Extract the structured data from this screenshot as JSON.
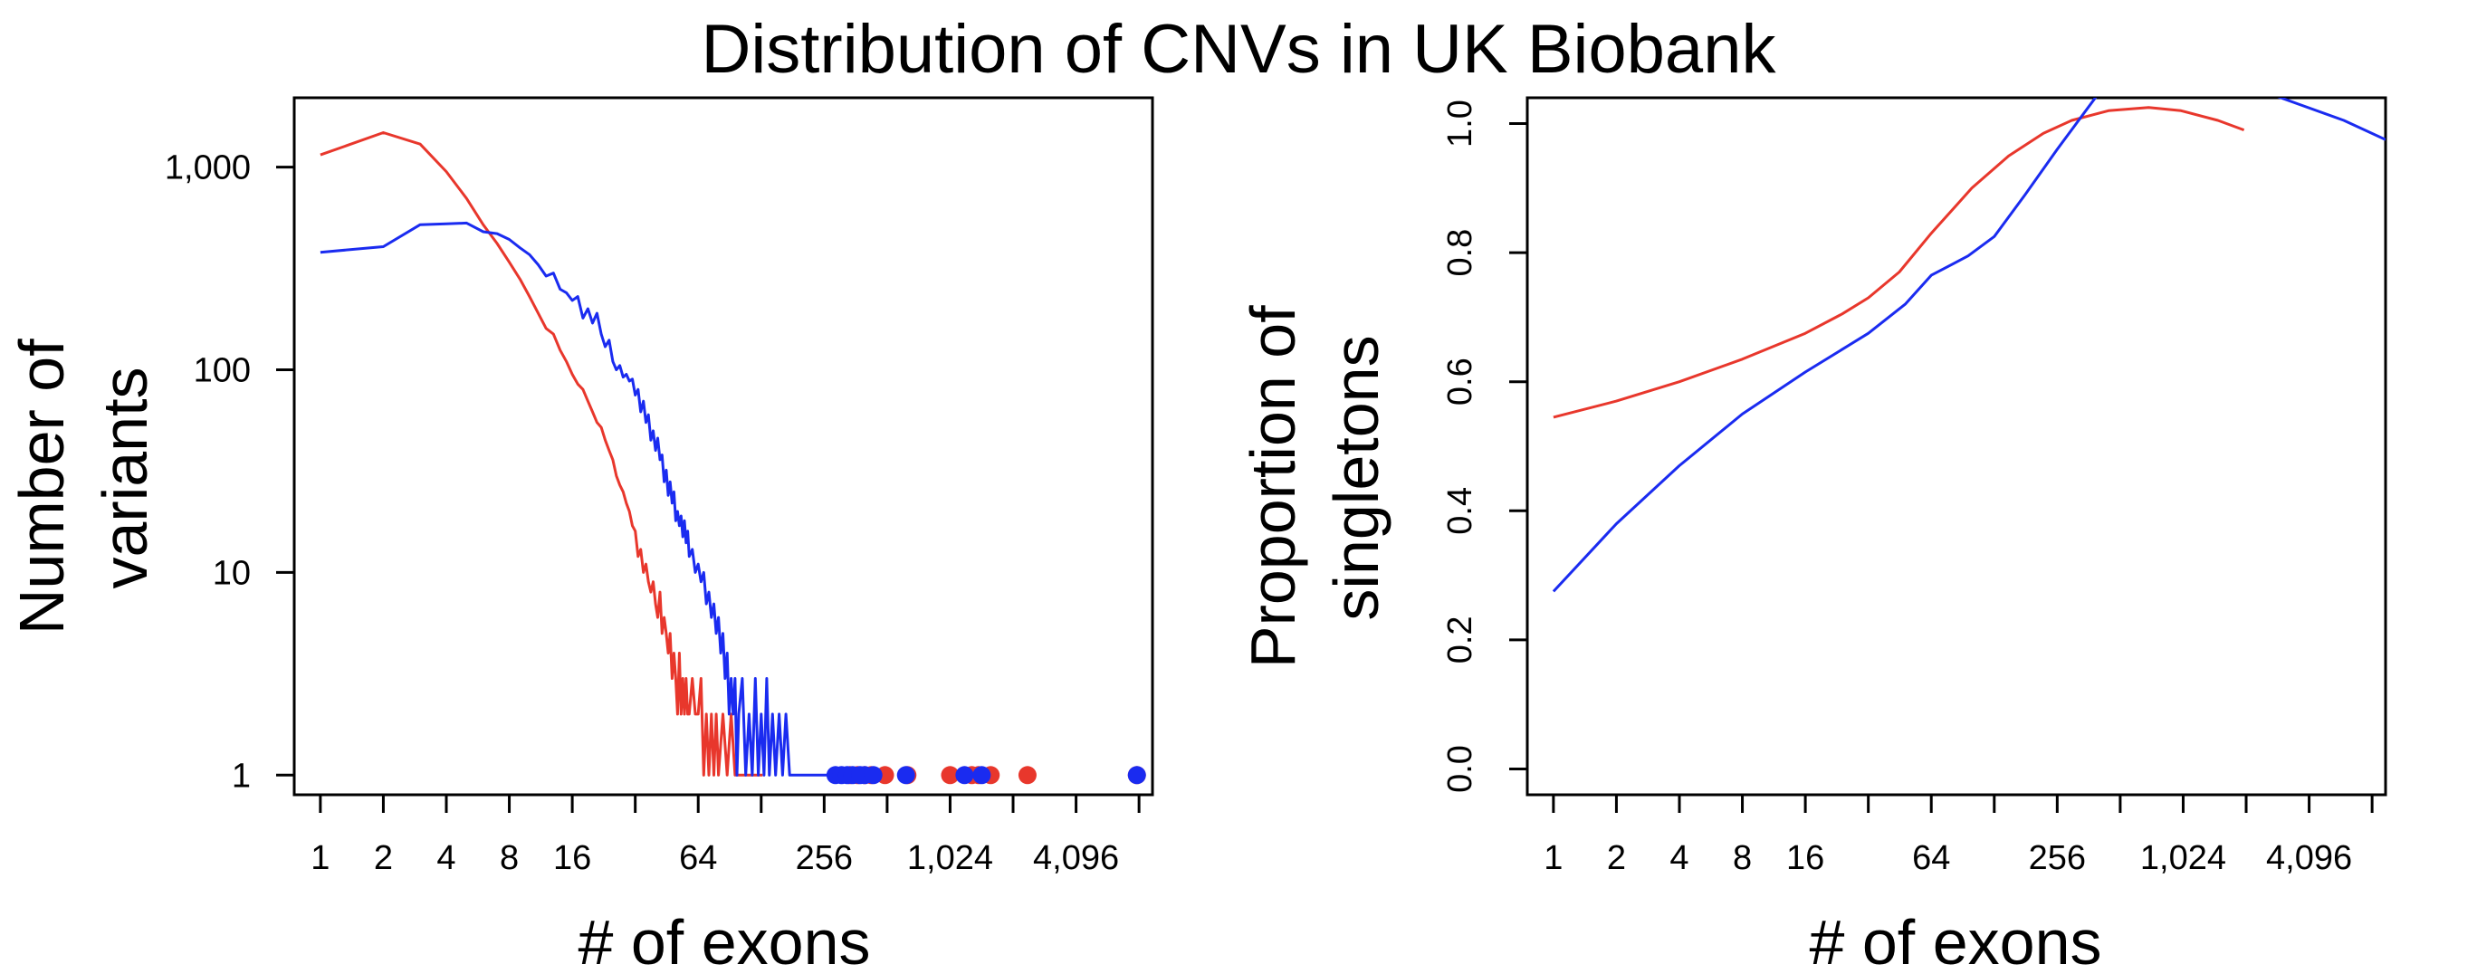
{
  "figure": {
    "title": "Distribution of CNVs in UK Biobank"
  },
  "colors": {
    "red_series": "#e8372c",
    "blue_series": "#1a2bf0",
    "axis": "#000000"
  },
  "chart_data": [
    {
      "type": "line",
      "xlabel": "# of exons",
      "ylabel_lines": [
        "Number of",
        "variants"
      ],
      "x_scale": "log2",
      "y_scale": "log10",
      "xlim": [
        0.75,
        9500
      ],
      "ylim": [
        0.8,
        2200
      ],
      "x_ticks": [
        1,
        2,
        4,
        8,
        16,
        32,
        64,
        128,
        256,
        512,
        1024,
        2048,
        4096,
        8192
      ],
      "x_tick_labels": [
        "1",
        "2",
        "4",
        "8",
        "16",
        "",
        "64",
        "",
        "256",
        "",
        "1,024",
        "",
        "4,096",
        ""
      ],
      "y_ticks": [
        1,
        10,
        100,
        1000
      ],
      "y_tick_labels": [
        "1",
        "10",
        "100",
        "1,000"
      ],
      "grid": false,
      "series": [
        {
          "color": "red_series",
          "line": [
            [
              1,
              1150
            ],
            [
              2,
              1480
            ],
            [
              3,
              1300
            ],
            [
              4,
              950
            ],
            [
              5,
              700
            ],
            [
              6,
              520
            ],
            [
              7,
              420
            ],
            [
              8,
              340
            ],
            [
              9,
              280
            ],
            [
              10,
              230
            ],
            [
              11,
              190
            ],
            [
              12,
              160
            ],
            [
              13,
              150
            ],
            [
              14,
              125
            ],
            [
              15,
              110
            ],
            [
              16,
              95
            ],
            [
              17,
              85
            ],
            [
              18,
              80
            ],
            [
              19,
              70
            ],
            [
              20,
              62
            ],
            [
              21,
              55
            ],
            [
              22,
              52
            ],
            [
              23,
              45
            ],
            [
              24,
              40
            ],
            [
              25,
              36
            ],
            [
              26,
              30
            ],
            [
              27,
              27
            ],
            [
              28,
              25
            ],
            [
              29,
              22
            ],
            [
              30,
              20
            ],
            [
              31,
              17
            ],
            [
              32,
              16
            ],
            [
              33,
              12
            ],
            [
              34,
              13
            ],
            [
              35,
              10
            ],
            [
              36,
              11
            ],
            [
              37,
              9
            ],
            [
              38,
              8
            ],
            [
              39,
              9
            ],
            [
              40,
              7
            ],
            [
              41,
              6
            ],
            [
              42,
              8
            ],
            [
              43,
              5
            ],
            [
              44,
              6
            ],
            [
              45,
              5
            ],
            [
              46,
              4
            ],
            [
              47,
              5
            ],
            [
              48,
              3
            ],
            [
              49,
              4
            ],
            [
              50,
              3
            ],
            [
              51,
              2
            ],
            [
              52,
              4
            ],
            [
              53,
              2
            ],
            [
              54,
              3
            ],
            [
              55,
              2
            ],
            [
              56,
              3
            ],
            [
              57,
              2
            ],
            [
              58,
              2
            ],
            [
              60,
              3
            ],
            [
              62,
              2
            ],
            [
              64,
              2
            ],
            [
              66,
              3
            ],
            [
              68,
              1
            ],
            [
              70,
              2
            ],
            [
              72,
              1
            ],
            [
              74,
              2
            ],
            [
              76,
              1
            ],
            [
              78,
              2
            ],
            [
              80,
              1
            ],
            [
              84,
              2
            ],
            [
              88,
              1
            ],
            [
              92,
              2
            ],
            [
              96,
              1
            ],
            [
              100,
              1
            ],
            [
              110,
              1
            ],
            [
              120,
              1
            ],
            [
              130,
              1
            ]
          ],
          "points": [
            340,
            370,
            400,
            430,
            500,
            640,
            1024,
            1300,
            1400,
            1600,
            2400,
            8000
          ]
        },
        {
          "color": "blue_series",
          "line": [
            [
              1,
              380
            ],
            [
              2,
              405
            ],
            [
              3,
              520
            ],
            [
              4,
              525
            ],
            [
              5,
              530
            ],
            [
              6,
              480
            ],
            [
              7,
              470
            ],
            [
              8,
              440
            ],
            [
              9,
              400
            ],
            [
              10,
              370
            ],
            [
              11,
              330
            ],
            [
              12,
              290
            ],
            [
              13,
              300
            ],
            [
              14,
              250
            ],
            [
              15,
              240
            ],
            [
              16,
              220
            ],
            [
              17,
              230
            ],
            [
              18,
              180
            ],
            [
              19,
              200
            ],
            [
              20,
              170
            ],
            [
              21,
              190
            ],
            [
              22,
              150
            ],
            [
              23,
              130
            ],
            [
              24,
              140
            ],
            [
              25,
              110
            ],
            [
              26,
              100
            ],
            [
              27,
              105
            ],
            [
              28,
              92
            ],
            [
              29,
              95
            ],
            [
              30,
              88
            ],
            [
              31,
              90
            ],
            [
              32,
              75
            ],
            [
              33,
              80
            ],
            [
              34,
              62
            ],
            [
              35,
              70
            ],
            [
              36,
              55
            ],
            [
              37,
              60
            ],
            [
              38,
              45
            ],
            [
              39,
              50
            ],
            [
              40,
              40
            ],
            [
              41,
              46
            ],
            [
              42,
              36
            ],
            [
              43,
              38
            ],
            [
              44,
              28
            ],
            [
              45,
              32
            ],
            [
              46,
              24
            ],
            [
              47,
              28
            ],
            [
              48,
              22
            ],
            [
              49,
              25
            ],
            [
              50,
              18
            ],
            [
              51,
              20
            ],
            [
              52,
              17
            ],
            [
              53,
              19
            ],
            [
              54,
              15
            ],
            [
              55,
              18
            ],
            [
              56,
              14
            ],
            [
              57,
              16
            ],
            [
              58,
              12
            ],
            [
              60,
              13
            ],
            [
              62,
              10
            ],
            [
              64,
              11
            ],
            [
              66,
              9
            ],
            [
              68,
              10
            ],
            [
              70,
              7
            ],
            [
              72,
              8
            ],
            [
              74,
              6
            ],
            [
              76,
              7
            ],
            [
              78,
              5
            ],
            [
              80,
              6
            ],
            [
              82,
              4
            ],
            [
              84,
              5
            ],
            [
              86,
              3
            ],
            [
              88,
              4
            ],
            [
              90,
              2
            ],
            [
              92,
              3
            ],
            [
              94,
              2
            ],
            [
              96,
              3
            ],
            [
              98,
              1
            ],
            [
              100,
              2
            ],
            [
              104,
              3
            ],
            [
              108,
              1
            ],
            [
              112,
              2
            ],
            [
              116,
              1
            ],
            [
              120,
              3
            ],
            [
              124,
              1
            ],
            [
              128,
              2
            ],
            [
              132,
              1
            ],
            [
              136,
              3
            ],
            [
              140,
              1
            ],
            [
              145,
              2
            ],
            [
              150,
              1
            ],
            [
              156,
              2
            ],
            [
              162,
              1
            ],
            [
              168,
              2
            ],
            [
              175,
              1
            ],
            [
              185,
              1
            ],
            [
              200,
              1
            ],
            [
              240,
              1
            ],
            [
              300,
              1
            ]
          ],
          "points": [
            290,
            310,
            330,
            350,
            380,
            400,
            440,
            630,
            1200,
            1450,
            8000
          ]
        }
      ]
    },
    {
      "type": "line",
      "xlabel": "# of exons",
      "ylabel_lines": [
        "Proportion of",
        "singletons"
      ],
      "x_scale": "log2",
      "y_scale": "linear",
      "xlim": [
        0.75,
        9500
      ],
      "ylim": [
        -0.04,
        1.04
      ],
      "x_ticks": [
        1,
        2,
        4,
        8,
        16,
        32,
        64,
        128,
        256,
        512,
        1024,
        2048,
        4096,
        8192
      ],
      "x_tick_labels": [
        "1",
        "2",
        "4",
        "8",
        "16",
        "",
        "64",
        "",
        "256",
        "",
        "1,024",
        "",
        "4,096",
        ""
      ],
      "y_ticks": [
        0,
        0.2,
        0.4,
        0.6,
        0.8,
        1.0
      ],
      "y_tick_labels": [
        "0.0",
        "0.2",
        "0.4",
        "0.6",
        "0.8",
        "1.0"
      ],
      "grid": false,
      "series": [
        {
          "color": "red_series",
          "line": [
            [
              1,
              0.545
            ],
            [
              2,
              0.57
            ],
            [
              4,
              0.6
            ],
            [
              8,
              0.635
            ],
            [
              16,
              0.675
            ],
            [
              24,
              0.705
            ],
            [
              32,
              0.73
            ],
            [
              45,
              0.77
            ],
            [
              64,
              0.83
            ],
            [
              100,
              0.9
            ],
            [
              150,
              0.95
            ],
            [
              220,
              0.985
            ],
            [
              300,
              1.005
            ],
            [
              450,
              1.02
            ],
            [
              700,
              1.025
            ],
            [
              1000,
              1.02
            ],
            [
              1500,
              1.005
            ],
            [
              2000,
              0.99
            ]
          ]
        },
        {
          "color": "blue_series",
          "line": [
            [
              1,
              0.275
            ],
            [
              2,
              0.38
            ],
            [
              4,
              0.47
            ],
            [
              8,
              0.55
            ],
            [
              16,
              0.615
            ],
            [
              32,
              0.675
            ],
            [
              48,
              0.72
            ],
            [
              64,
              0.765
            ],
            [
              96,
              0.795
            ],
            [
              128,
              0.825
            ],
            [
              180,
              0.89
            ],
            [
              256,
              0.96
            ],
            [
              400,
              1.045
            ],
            [
              700,
              1.085
            ],
            [
              1400,
              1.085
            ],
            [
              3000,
              1.04
            ],
            [
              6000,
              1.005
            ],
            [
              9500,
              0.975
            ]
          ]
        }
      ]
    }
  ]
}
